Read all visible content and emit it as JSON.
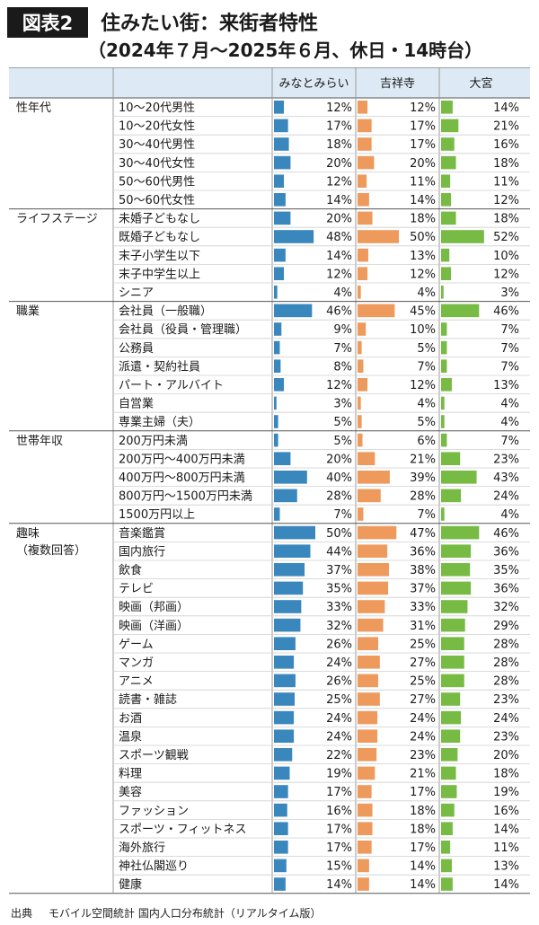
{
  "header": {
    "badge": "図表2",
    "title_line1": "住みたい街：来街者特性",
    "title_line2": "（2024年７月〜2025年６月、休日・14時台）"
  },
  "footer": {
    "source_label": "出典",
    "source_text": "モバイル空間統計 国内人口分布統計（リアルタイム版）"
  },
  "chart_data": {
    "type": "bar",
    "orientation": "horizontal",
    "unit": "%",
    "xlim": [
      0,
      100
    ],
    "series": [
      {
        "name": "みなとみらい",
        "color": "#3a87bd"
      },
      {
        "name": "吉祥寺",
        "color": "#ee9a5c"
      },
      {
        "name": "大宮",
        "color": "#77bb44"
      }
    ],
    "groups": [
      {
        "name": "性年代",
        "rows": [
          {
            "label": "10〜20代男性",
            "values": [
              12,
              12,
              14
            ]
          },
          {
            "label": "10〜20代女性",
            "values": [
              17,
              17,
              21
            ]
          },
          {
            "label": "30〜40代男性",
            "values": [
              18,
              17,
              16
            ]
          },
          {
            "label": "30〜40代女性",
            "values": [
              20,
              20,
              18
            ]
          },
          {
            "label": "50〜60代男性",
            "values": [
              12,
              11,
              11
            ]
          },
          {
            "label": "50〜60代女性",
            "values": [
              14,
              14,
              12
            ]
          }
        ]
      },
      {
        "name": "ライフステージ",
        "rows": [
          {
            "label": "未婚子どもなし",
            "values": [
              20,
              18,
              18
            ]
          },
          {
            "label": "既婚子どもなし",
            "values": [
              48,
              50,
              52
            ]
          },
          {
            "label": "末子小学生以下",
            "values": [
              14,
              13,
              10
            ]
          },
          {
            "label": "末子中学生以上",
            "values": [
              12,
              12,
              12
            ]
          },
          {
            "label": "シニア",
            "values": [
              4,
              4,
              3
            ]
          }
        ]
      },
      {
        "name": "職業",
        "rows": [
          {
            "label": "会社員（一般職）",
            "values": [
              46,
              45,
              46
            ]
          },
          {
            "label": "会社員（役員・管理職）",
            "values": [
              9,
              10,
              7
            ]
          },
          {
            "label": "公務員",
            "values": [
              7,
              5,
              7
            ]
          },
          {
            "label": "派遣・契約社員",
            "values": [
              8,
              7,
              7
            ]
          },
          {
            "label": "パート・アルバイト",
            "values": [
              12,
              12,
              13
            ]
          },
          {
            "label": "自営業",
            "values": [
              3,
              4,
              4
            ]
          },
          {
            "label": "専業主婦（夫）",
            "values": [
              5,
              5,
              4
            ]
          }
        ]
      },
      {
        "name": "世帯年収",
        "rows": [
          {
            "label": "200万円未満",
            "values": [
              5,
              6,
              7
            ]
          },
          {
            "label": "200万円〜400万円未満",
            "values": [
              20,
              21,
              23
            ]
          },
          {
            "label": "400万円〜800万円未満",
            "values": [
              40,
              39,
              43
            ]
          },
          {
            "label": "800万円〜1500万円未満",
            "values": [
              28,
              28,
              24
            ]
          },
          {
            "label": "1500万円以上",
            "values": [
              7,
              7,
              4
            ]
          }
        ]
      },
      {
        "name": "趣味\n（複数回答）",
        "rows": [
          {
            "label": "音楽鑑賞",
            "values": [
              50,
              47,
              46
            ]
          },
          {
            "label": "国内旅行",
            "values": [
              44,
              36,
              36
            ]
          },
          {
            "label": "飲食",
            "values": [
              37,
              38,
              35
            ]
          },
          {
            "label": "テレビ",
            "values": [
              35,
              37,
              36
            ]
          },
          {
            "label": "映画（邦画）",
            "values": [
              33,
              33,
              32
            ]
          },
          {
            "label": "映画（洋画）",
            "values": [
              32,
              31,
              29
            ]
          },
          {
            "label": "ゲーム",
            "values": [
              26,
              25,
              28
            ]
          },
          {
            "label": "マンガ",
            "values": [
              24,
              27,
              28
            ]
          },
          {
            "label": "アニメ",
            "values": [
              26,
              25,
              28
            ]
          },
          {
            "label": "読書・雑誌",
            "values": [
              25,
              27,
              23
            ]
          },
          {
            "label": "お酒",
            "values": [
              24,
              24,
              24
            ]
          },
          {
            "label": "温泉",
            "values": [
              24,
              24,
              23
            ]
          },
          {
            "label": "スポーツ観戦",
            "values": [
              22,
              23,
              20
            ]
          },
          {
            "label": "料理",
            "values": [
              19,
              21,
              18
            ]
          },
          {
            "label": "美容",
            "values": [
              17,
              17,
              19
            ]
          },
          {
            "label": "ファッション",
            "values": [
              16,
              18,
              16
            ]
          },
          {
            "label": "スポーツ・フィットネス",
            "values": [
              17,
              18,
              14
            ]
          },
          {
            "label": "海外旅行",
            "values": [
              17,
              17,
              11
            ]
          },
          {
            "label": "神社仏閣巡り",
            "values": [
              15,
              14,
              13
            ]
          },
          {
            "label": "健康",
            "values": [
              14,
              14,
              14
            ]
          }
        ]
      }
    ]
  }
}
